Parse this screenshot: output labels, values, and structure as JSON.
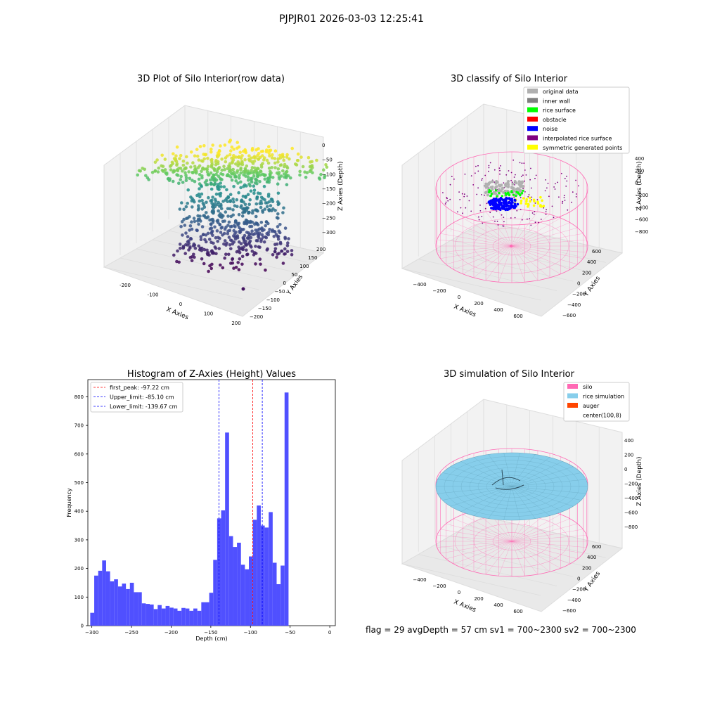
{
  "figure": {
    "suptitle": "PJPJR01 2026-03-03 12:25:41",
    "status_text": "flag = 29  avgDepth = 57 cm    sv1 = 700~2300  sv2 = 700~2300"
  },
  "colors": {
    "silo": "#ff69b4",
    "rice_simulation": "#87ceeb",
    "auger": "#ff4500",
    "inner_wall": "#808080",
    "rice_surface": "#00ff00",
    "obstacle": "#ff0000",
    "noise": "#0000ff",
    "interpolated": "#800080",
    "symmetric": "#ffff00",
    "original": "#b0b0b0",
    "hist_bar": "#5050ff"
  },
  "panel1": {
    "title": "3D Plot of Silo Interior(row data)",
    "xlabel": "X Axies",
    "ylabel": "Y Axies",
    "zlabel": "Z Axies (Depth)",
    "xticks": [
      "-200",
      "-100",
      "0",
      "100",
      "200"
    ],
    "yticks": [
      "200",
      "150",
      "100",
      "50",
      "0",
      "−50",
      "−100",
      "−150",
      "−200"
    ],
    "zticks": [
      "0",
      "−50",
      "−100",
      "−150",
      "−200",
      "−250",
      "−300"
    ]
  },
  "panel2": {
    "title": "3D classify of Silo Interior",
    "xlabel": "X Axies",
    "ylabel": "Y Axies",
    "zlabel": "Z Axies (Depth)",
    "xticks": [
      "−400",
      "−200",
      "0",
      "200",
      "400",
      "600"
    ],
    "yticks": [
      "600",
      "400",
      "200",
      "0",
      "−200",
      "−400",
      "−600"
    ],
    "zticks": [
      "400",
      "200",
      "0",
      "−200",
      "−400",
      "−600",
      "−800"
    ],
    "legend": [
      {
        "label": "original data",
        "color": "#b0b0b0"
      },
      {
        "label": "inner wall",
        "color": "#808080"
      },
      {
        "label": "rice surface",
        "color": "#00ff00"
      },
      {
        "label": "obstacle",
        "color": "#ff0000"
      },
      {
        "label": "noise",
        "color": "#0000ff"
      },
      {
        "label": "interpolated rice surface",
        "color": "#800080"
      },
      {
        "label": "symmetric generated points",
        "color": "#ffff00"
      }
    ]
  },
  "panel4": {
    "title": "3D simulation of Silo Interior",
    "xlabel": "X Axies",
    "ylabel": "Y Axies",
    "zlabel": "Z Axies (Depth)",
    "xticks": [
      "−400",
      "−200",
      "0",
      "200",
      "400",
      "600"
    ],
    "yticks": [
      "600",
      "400",
      "200",
      "0",
      "−200",
      "−400",
      "−600"
    ],
    "zticks": [
      "400",
      "200",
      "0",
      "−200",
      "−400",
      "−600",
      "−800"
    ],
    "legend": [
      {
        "label": "silo",
        "color": "#ff69b4"
      },
      {
        "label": "rice simulation",
        "color": "#87ceeb"
      },
      {
        "label": "auger",
        "color": "#ff4500"
      },
      {
        "label": "center(100,8)",
        "color": ""
      }
    ]
  },
  "chart_data": {
    "type": "bar",
    "title": "Histogram of Z-Axies (Height) Values",
    "xlabel": "Depth (cm)",
    "ylabel": "Frequency",
    "xlim": [
      -305,
      7
    ],
    "ylim": [
      0,
      860
    ],
    "grid": false,
    "legend_position": "top-left",
    "bin_start": -302,
    "bin_width": 5,
    "values": [
      45,
      175,
      192,
      228,
      190,
      155,
      162,
      137,
      147,
      128,
      150,
      117,
      117,
      78,
      76,
      74,
      58,
      72,
      60,
      69,
      63,
      60,
      52,
      62,
      60,
      52,
      60,
      52,
      82,
      82,
      115,
      230,
      375,
      403,
      675,
      313,
      275,
      290,
      213,
      197,
      242,
      370,
      420,
      350,
      343,
      397,
      220,
      145,
      210,
      815
    ],
    "xticks": [
      -300,
      -250,
      -200,
      -150,
      -100,
      -50,
      0
    ],
    "yticks": [
      0,
      100,
      200,
      300,
      400,
      500,
      600,
      700,
      800
    ],
    "vlines": [
      {
        "name": "first_peak: -97.22 cm",
        "x": -97.22,
        "color": "#ff0000"
      },
      {
        "name": "Upper_limit: -85.10 cm",
        "x": -85.1,
        "color": "#0000ff"
      },
      {
        "name": "Lower_limit: -139.67 cm",
        "x": -139.67,
        "color": "#0000ff"
      }
    ]
  }
}
